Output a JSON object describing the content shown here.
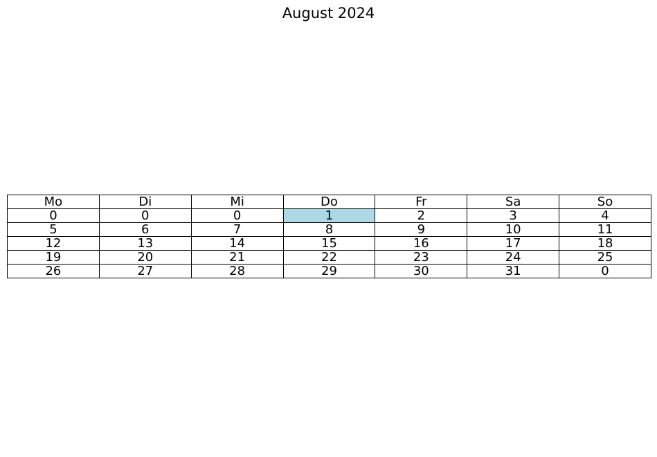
{
  "chart_data": {
    "type": "table",
    "title": "August 2024",
    "columns": [
      "Mo",
      "Di",
      "Mi",
      "Do",
      "Fr",
      "Sa",
      "So"
    ],
    "rows": [
      [
        "0",
        "0",
        "0",
        "1",
        "2",
        "3",
        "4"
      ],
      [
        "5",
        "6",
        "7",
        "8",
        "9",
        "10",
        "11"
      ],
      [
        "12",
        "13",
        "14",
        "15",
        "16",
        "17",
        "18"
      ],
      [
        "19",
        "20",
        "21",
        "22",
        "23",
        "24",
        "25"
      ],
      [
        "26",
        "27",
        "28",
        "29",
        "30",
        "31",
        "0"
      ]
    ],
    "highlight": {
      "row": 0,
      "col": 3,
      "color": "#add8e6"
    }
  }
}
